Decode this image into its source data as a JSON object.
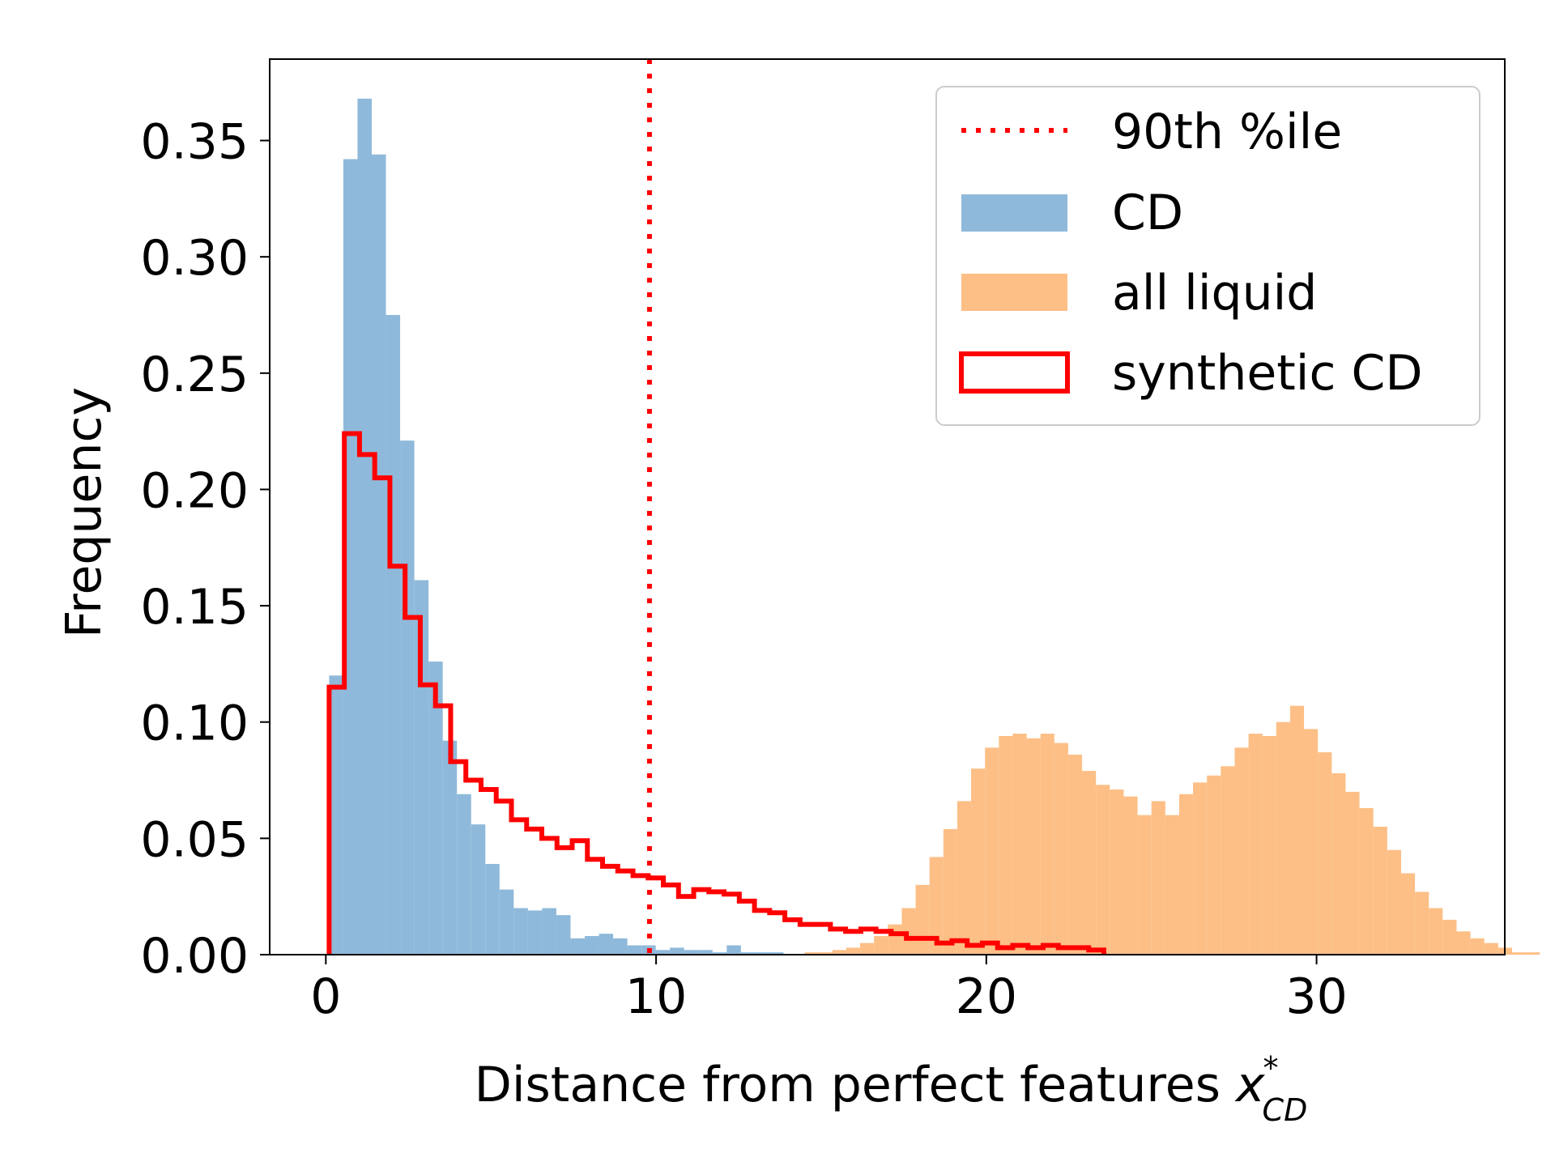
{
  "chart_data": {
    "type": "bar",
    "xlabel": "Distance from perfect features ",
    "xlabel_math": {
      "base": "x",
      "sup": "*",
      "sub": "CD"
    },
    "ylabel": "Frequency",
    "xlim": [
      -1.7,
      35.7
    ],
    "ylim": [
      0,
      0.385
    ],
    "xticks": [
      0,
      10,
      20,
      30
    ],
    "xtick_labels": [
      "0",
      "10",
      "20",
      "30"
    ],
    "yticks": [
      0,
      0.05,
      0.1,
      0.15,
      0.2,
      0.25,
      0.3,
      0.35
    ],
    "ytick_labels": [
      "0.00",
      "0.05",
      "0.10",
      "0.15",
      "0.20",
      "0.25",
      "0.30",
      "0.35"
    ],
    "grid": false,
    "legend_position": "upper right",
    "colors": {
      "cd": "#8fb9da",
      "all_liquid": "#fdbf86",
      "synthetic": "#ff0000",
      "percentile": "#ff0000"
    },
    "percentile_line": {
      "name": "90th %ile",
      "x": 9.8
    },
    "series": [
      {
        "name": "CD",
        "kind": "histogram",
        "bin_start": 0.1,
        "bin_width": 0.43,
        "values": [
          0.12,
          0.342,
          0.368,
          0.344,
          0.275,
          0.221,
          0.161,
          0.126,
          0.092,
          0.069,
          0.056,
          0.039,
          0.028,
          0.02,
          0.019,
          0.02,
          0.017,
          0.007,
          0.008,
          0.009,
          0.007,
          0.004,
          0.004,
          0.002,
          0.003,
          0.002,
          0.002,
          0.001,
          0.004,
          0.001,
          0.001,
          0.001
        ]
      },
      {
        "name": "all liquid",
        "kind": "histogram",
        "bin_start": 14.5,
        "bin_width": 0.42,
        "values": [
          0.001,
          0.001,
          0.002,
          0.003,
          0.005,
          0.008,
          0.013,
          0.02,
          0.03,
          0.042,
          0.054,
          0.066,
          0.08,
          0.089,
          0.094,
          0.095,
          0.093,
          0.095,
          0.091,
          0.086,
          0.079,
          0.073,
          0.071,
          0.068,
          0.06,
          0.066,
          0.06,
          0.069,
          0.074,
          0.077,
          0.081,
          0.089,
          0.095,
          0.094,
          0.1,
          0.107,
          0.097,
          0.087,
          0.078,
          0.07,
          0.063,
          0.055,
          0.045,
          0.035,
          0.027,
          0.02,
          0.015,
          0.01,
          0.007,
          0.005,
          0.003,
          0.001,
          0.001
        ]
      },
      {
        "name": "synthetic CD",
        "kind": "step_histogram",
        "bin_start": 0.1,
        "bin_width": 0.46,
        "values": [
          0.115,
          0.224,
          0.215,
          0.205,
          0.167,
          0.145,
          0.116,
          0.107,
          0.083,
          0.075,
          0.071,
          0.066,
          0.058,
          0.054,
          0.05,
          0.046,
          0.049,
          0.041,
          0.038,
          0.036,
          0.034,
          0.033,
          0.03,
          0.025,
          0.028,
          0.027,
          0.026,
          0.023,
          0.019,
          0.018,
          0.015,
          0.013,
          0.013,
          0.011,
          0.01,
          0.011,
          0.01,
          0.009,
          0.007,
          0.007,
          0.005,
          0.006,
          0.004,
          0.005,
          0.003,
          0.004,
          0.003,
          0.004,
          0.003,
          0.003,
          0.002
        ]
      }
    ],
    "legend": [
      {
        "label": "90th %ile",
        "style": "dotted-line"
      },
      {
        "label": "CD",
        "style": "filled-blue"
      },
      {
        "label": "all liquid",
        "style": "filled-orange"
      },
      {
        "label": "synthetic CD",
        "style": "outline-red"
      }
    ]
  }
}
